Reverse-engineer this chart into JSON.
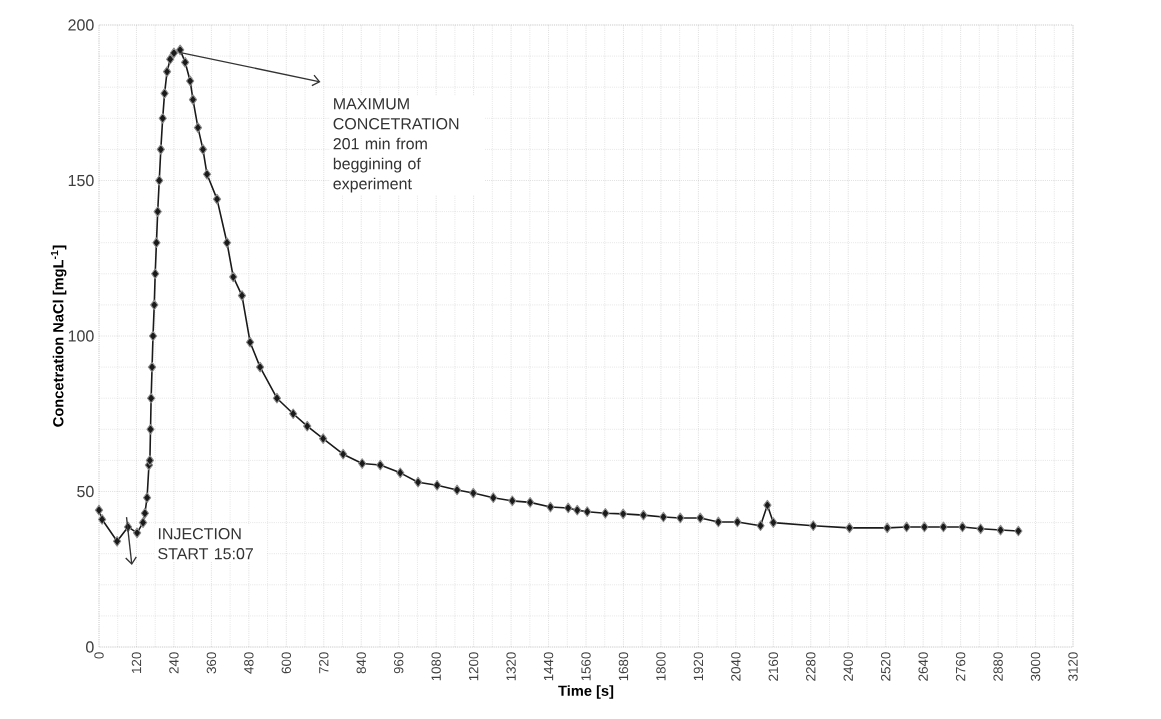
{
  "chart_data": {
    "type": "line",
    "xlabel": "Time [s]",
    "ylabel": "Concetration NaCl [mgL$^{-1}$]",
    "x": [
      0,
      10,
      58,
      93,
      122,
      141,
      147,
      154,
      160,
      163,
      165,
      167,
      170,
      173,
      177,
      180,
      184,
      188,
      193,
      198,
      204,
      210,
      218,
      228,
      240,
      260,
      276,
      292,
      301,
      317,
      333,
      346,
      378,
      410,
      430,
      458,
      484,
      516,
      570,
      622,
      667,
      718,
      782,
      843,
      901,
      965,
      1022,
      1083,
      1147,
      1199,
      1263,
      1324,
      1381,
      1446,
      1503,
      1532,
      1564,
      1622,
      1679,
      1744,
      1808,
      1862,
      1926,
      1984,
      2045,
      2119,
      2141,
      2160,
      2288,
      2404,
      2525,
      2587,
      2644,
      2705,
      2766,
      2824,
      2888,
      2945
    ],
    "series": [
      {
        "color": "#1a1a1a",
        "values": [
          44,
          41,
          34,
          38.6,
          36.7,
          40,
          43,
          48,
          58.5,
          60,
          70,
          80,
          90,
          100,
          110,
          120,
          130,
          140,
          150,
          160,
          170,
          178,
          185,
          189,
          191,
          192,
          188,
          182,
          176,
          167,
          160,
          152,
          144,
          130,
          119,
          113,
          98,
          90,
          80,
          75,
          71,
          67,
          62,
          59,
          58.5,
          56,
          53,
          52,
          50.5,
          49.5,
          48,
          47,
          46.5,
          45,
          44.7,
          44,
          43.5,
          43,
          42.8,
          42.4,
          41.8,
          41.5,
          41.5,
          40.2,
          40.2,
          39,
          45.6,
          40,
          39,
          38.3,
          38.3,
          38.6,
          38.6,
          38.6,
          38.6,
          38,
          37.6,
          37.3
        ]
      }
    ],
    "marker": "diamond",
    "xlim": [
      0,
      3120
    ],
    "ylim": [
      0,
      200
    ],
    "xticks": [
      0,
      120,
      240,
      360,
      480,
      600,
      720,
      840,
      960,
      1080,
      1200,
      1320,
      1440,
      1560,
      1680,
      1800,
      1920,
      2040,
      2160,
      2280,
      2400,
      2520,
      2640,
      2760,
      2880,
      3000,
      3120
    ],
    "yticks": [
      0,
      50,
      100,
      150,
      200
    ],
    "grid": true,
    "annotations": [
      "INJECTION START 15:07",
      "MAXIMUM CONCETRATION 201 min from beggining of experiment"
    ]
  }
}
